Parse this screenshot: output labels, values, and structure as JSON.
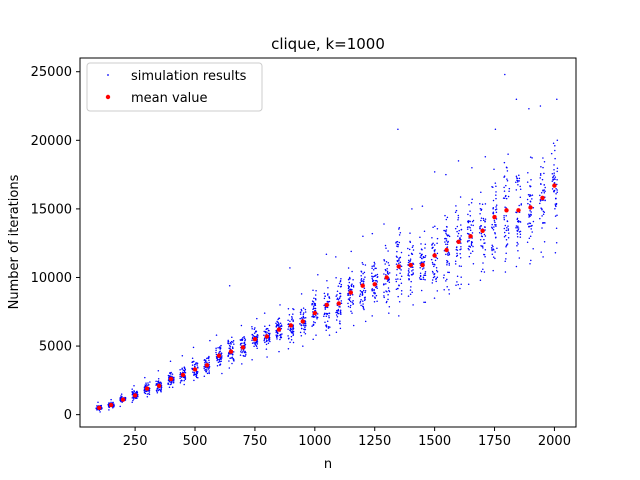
{
  "chart_data": {
    "type": "scatter",
    "title": "clique, k=1000",
    "xlabel": "n",
    "ylabel": "Number of iterations",
    "xlim": [
      20,
      2090
    ],
    "ylim": [
      -900,
      26000
    ],
    "xticks": [
      250,
      500,
      750,
      1000,
      1250,
      1500,
      1750,
      2000
    ],
    "xtick_labels": [
      "250",
      "500",
      "750",
      "1000",
      "1250",
      "1500",
      "1750",
      "2000"
    ],
    "yticks": [
      0,
      5000,
      10000,
      15000,
      20000,
      25000
    ],
    "ytick_labels": [
      "0",
      "5000",
      "10000",
      "15000",
      "20000",
      "25000"
    ],
    "grid": false,
    "legend_position": "top-left",
    "series": [
      {
        "name": "simulation results",
        "color": "#0000ff",
        "marker": "small dot",
        "x_values": [
          100,
          150,
          200,
          250,
          300,
          350,
          400,
          450,
          500,
          550,
          600,
          650,
          700,
          750,
          800,
          850,
          900,
          950,
          1000,
          1050,
          1100,
          1150,
          1200,
          1250,
          1300,
          1350,
          1400,
          1450,
          1500,
          1550,
          1600,
          1650,
          1700,
          1750,
          1800,
          1850,
          1900,
          1950,
          2000
        ],
        "points_per_x": 50,
        "note_min_max": [
          [
            200,
            900
          ],
          [
            350,
            1100
          ],
          [
            600,
            1500
          ],
          [
            900,
            2100
          ],
          [
            1300,
            2700
          ],
          [
            1600,
            3200
          ],
          [
            2000,
            3900
          ],
          [
            2200,
            4300
          ],
          [
            2500,
            4900
          ],
          [
            2800,
            5400
          ],
          [
            3000,
            5800
          ],
          [
            3400,
            9400
          ],
          [
            3700,
            6500
          ],
          [
            4000,
            7000
          ],
          [
            4200,
            7400
          ],
          [
            4600,
            8000
          ],
          [
            4800,
            10700
          ],
          [
            5000,
            8800
          ],
          [
            5500,
            10200
          ],
          [
            5800,
            11700
          ],
          [
            6000,
            11500
          ],
          [
            6500,
            11900
          ],
          [
            6800,
            13000
          ],
          [
            7200,
            13200
          ],
          [
            7400,
            13900
          ],
          [
            7200,
            20800
          ],
          [
            8000,
            15000
          ],
          [
            8200,
            15200
          ],
          [
            8500,
            17700
          ],
          [
            8800,
            17500
          ],
          [
            9200,
            18500
          ],
          [
            9500,
            18000
          ],
          [
            9800,
            18800
          ],
          [
            10500,
            20800
          ],
          [
            10400,
            24800
          ],
          [
            10800,
            23000
          ],
          [
            11000,
            22300
          ],
          [
            11500,
            22500
          ],
          [
            11800,
            23000
          ]
        ]
      },
      {
        "name": "mean value",
        "color": "#ff0000",
        "marker": "dot",
        "x": [
          100,
          150,
          200,
          250,
          300,
          350,
          400,
          450,
          500,
          550,
          600,
          650,
          700,
          750,
          800,
          850,
          900,
          950,
          1000,
          1050,
          1100,
          1150,
          1200,
          1250,
          1300,
          1350,
          1400,
          1450,
          1500,
          1550,
          1600,
          1650,
          1700,
          1750,
          1800,
          1850,
          1900,
          1950,
          2000
        ],
        "y": [
          500,
          700,
          1100,
          1400,
          1900,
          2100,
          2600,
          2900,
          3300,
          3600,
          4300,
          4600,
          4900,
          5500,
          5700,
          6200,
          6500,
          6800,
          7400,
          8000,
          8100,
          8900,
          9400,
          9500,
          10000,
          10800,
          10900,
          10900,
          11600,
          12000,
          12600,
          13000,
          13400,
          14400,
          14900,
          14900,
          15100,
          15800,
          16700
        ]
      }
    ]
  }
}
